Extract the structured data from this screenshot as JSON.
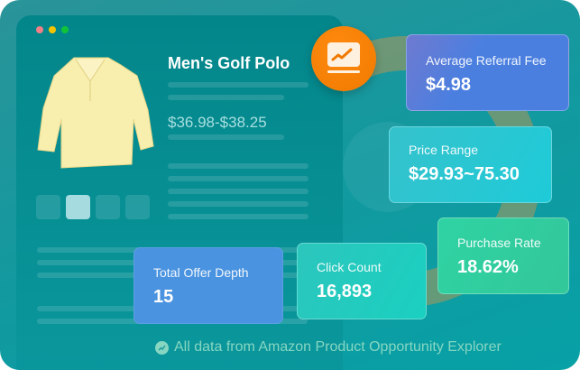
{
  "product": {
    "title": "Men's Golf Polo",
    "price": "$36.98-$38.25"
  },
  "icons": {
    "badge": "chart-monitor-icon",
    "footer": "trend-icon"
  },
  "metrics": [
    {
      "label": "Average Referral Fee",
      "value": "$4.98",
      "color": "#4a7fe0"
    },
    {
      "label": "Price Range",
      "value": "$29.93~75.30",
      "color": "#20c3d3"
    },
    {
      "label": "Purchase Rate",
      "value": "18.62%",
      "color": "#30cf9e"
    },
    {
      "label": "Click Count",
      "value": "16,893",
      "color": "#1ccbbd"
    },
    {
      "label": "Total Offer Depth",
      "value": "15",
      "color": "#4a93e0"
    }
  ],
  "footer": {
    "text": "All data from Amazon Product Opportunity Explorer"
  }
}
